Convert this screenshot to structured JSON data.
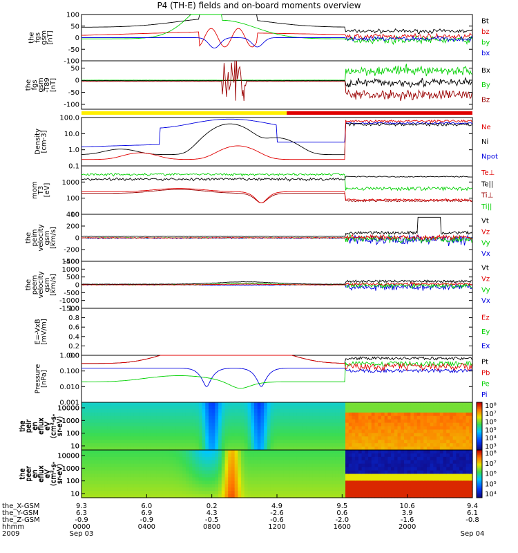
{
  "title": "P4 (TH-E) fields and on-board moments overview",
  "colors": {
    "black": "#000000",
    "red": "#e00000",
    "green": "#00d000",
    "blue": "#0000e0",
    "dkred": "#9a0000",
    "yellow": "#ffee00"
  },
  "chart_data": {
    "type": "line",
    "x_axis": {
      "time_ticks": [
        "0000",
        "0400",
        "0800",
        "1200",
        "1600",
        "2000"
      ],
      "date_start": "Sep 03",
      "date_end": "Sep 04",
      "year": "2009",
      "rows": [
        {
          "label": "the_X-GSM",
          "values": [
            "9.3",
            "6.0",
            "0.2",
            "4.9",
            "9.5",
            "10.6",
            "9.4"
          ]
        },
        {
          "label": "the_Y-GSM",
          "values": [
            "6.3",
            "6.9",
            "4.3",
            "-2.6",
            "0.6",
            "3.9",
            "6.1"
          ]
        },
        {
          "label": "the_Z-GSM",
          "values": [
            "-0.9",
            "-0.9",
            "-0.5",
            "-0.6",
            "-2.0",
            "-1.6",
            "-0.8"
          ]
        },
        {
          "label": "hhmm",
          "values": [
            "0000",
            "0400",
            "0800",
            "1200",
            "1600",
            "2000",
            ""
          ]
        }
      ]
    },
    "panels": [
      {
        "id": "fgs",
        "ylabel": [
          "the",
          "fgs",
          "gsm",
          "[nT]"
        ],
        "ylim": [
          -100,
          100
        ],
        "log": false,
        "ticks": [
          "100",
          "50",
          "0",
          "-50",
          "-100"
        ],
        "series": [
          {
            "name": "Bt",
            "color": "black"
          },
          {
            "name": "bz",
            "color": "red"
          },
          {
            "name": "by",
            "color": "green"
          },
          {
            "name": "bx",
            "color": "blue"
          }
        ]
      },
      {
        "id": "fgs_dtr",
        "ylabel": [
          "the",
          "fgs",
          "gsm",
          "-T89",
          "[nT]"
        ],
        "ylim": [
          -120,
          80
        ],
        "log": false,
        "ticks": [
          "50",
          "0",
          "-50",
          "-100"
        ],
        "series": [
          {
            "name": "Bx",
            "color": "black"
          },
          {
            "name": "By",
            "color": "green"
          },
          {
            "name": "Bz",
            "color": "dkred"
          }
        ]
      },
      {
        "id": "density",
        "ylabel": [
          "Density",
          "[cm-3]"
        ],
        "ylim": [
          0.1,
          100
        ],
        "log": true,
        "ticks": [
          "100.0",
          "10.0",
          "1.0",
          "0.1"
        ],
        "series": [
          {
            "name": "Ne",
            "color": "red"
          },
          {
            "name": "Ni",
            "color": "black"
          },
          {
            "name": "Npot",
            "color": "blue"
          }
        ]
      },
      {
        "id": "temp",
        "ylabel": [
          "mom",
          "T3",
          "[eV]"
        ],
        "ylim": [
          10,
          10000
        ],
        "log": true,
        "ticks": [
          "1000",
          "100",
          "10"
        ],
        "series": [
          {
            "name": "Te⊥",
            "color": "red"
          },
          {
            "name": "Te||",
            "color": "black"
          },
          {
            "name": "Ti⊥",
            "color": "dkred"
          },
          {
            "name": "Ti||",
            "color": "green"
          }
        ]
      },
      {
        "id": "peim_vel",
        "ylabel": [
          "the",
          "peim",
          "velocity",
          "gsm",
          "[km/s]"
        ],
        "ylim": [
          -400,
          400
        ],
        "log": false,
        "ticks": [
          "400",
          "200",
          "0",
          "-200",
          "-400"
        ],
        "series": [
          {
            "name": "Vt",
            "color": "black"
          },
          {
            "name": "Vz",
            "color": "red"
          },
          {
            "name": "Vy",
            "color": "green"
          },
          {
            "name": "Vx",
            "color": "blue"
          }
        ]
      },
      {
        "id": "peem_vel",
        "ylabel": [
          "the",
          "peem",
          "velocity",
          "gsm",
          "[km/s]"
        ],
        "ylim": [
          -1500,
          1500
        ],
        "log": false,
        "ticks": [
          "1500",
          "1000",
          "500",
          "0",
          "-500",
          "-1000",
          "-1500"
        ],
        "series": [
          {
            "name": "Vt",
            "color": "black"
          },
          {
            "name": "Vz",
            "color": "red"
          },
          {
            "name": "Vy",
            "color": "green"
          },
          {
            "name": "Vx",
            "color": "blue"
          }
        ]
      },
      {
        "id": "efield",
        "ylabel": [
          "E=-VxB",
          "[mV/m]"
        ],
        "ylim": [
          0,
          1
        ],
        "log": false,
        "ticks": [
          "1.0",
          "0.8",
          "0.6",
          "0.4",
          "0.2",
          "0.0"
        ],
        "series": [
          {
            "name": "Ez",
            "color": "red"
          },
          {
            "name": "Ey",
            "color": "green"
          },
          {
            "name": "Ex",
            "color": "blue"
          }
        ]
      },
      {
        "id": "pressure",
        "ylabel": [
          "Pressure",
          "[nPa]"
        ],
        "ylim": [
          0.001,
          1
        ],
        "log": true,
        "ticks": [
          "1.000",
          "0.100",
          "0.010",
          "0.001"
        ],
        "series": [
          {
            "name": "Pt",
            "color": "black"
          },
          {
            "name": "Pb",
            "color": "red"
          },
          {
            "name": "Pe",
            "color": "green"
          },
          {
            "name": "Pi",
            "color": "blue"
          }
        ]
      },
      {
        "id": "peir_spec",
        "ylabel": [
          "the",
          "peir",
          "en",
          "eflux",
          "eV",
          "(cm²-s-",
          "sr-eV)"
        ],
        "ytick": [
          "10000",
          "1000",
          "100",
          "10"
        ],
        "colorbar": [
          "10⁸",
          "10⁷",
          "10⁶",
          "10⁵",
          "10⁴",
          "10³"
        ]
      },
      {
        "id": "peer_spec",
        "ylabel": [
          "the",
          "peer",
          "en",
          "eflux",
          "eV",
          "(cm²-s-",
          "sr-eV)"
        ],
        "ytick": [
          "10000",
          "1000",
          "100",
          "10"
        ],
        "colorbar": [
          "10⁸",
          "10⁷",
          "10⁶",
          "10⁵",
          "10⁴"
        ]
      }
    ]
  }
}
